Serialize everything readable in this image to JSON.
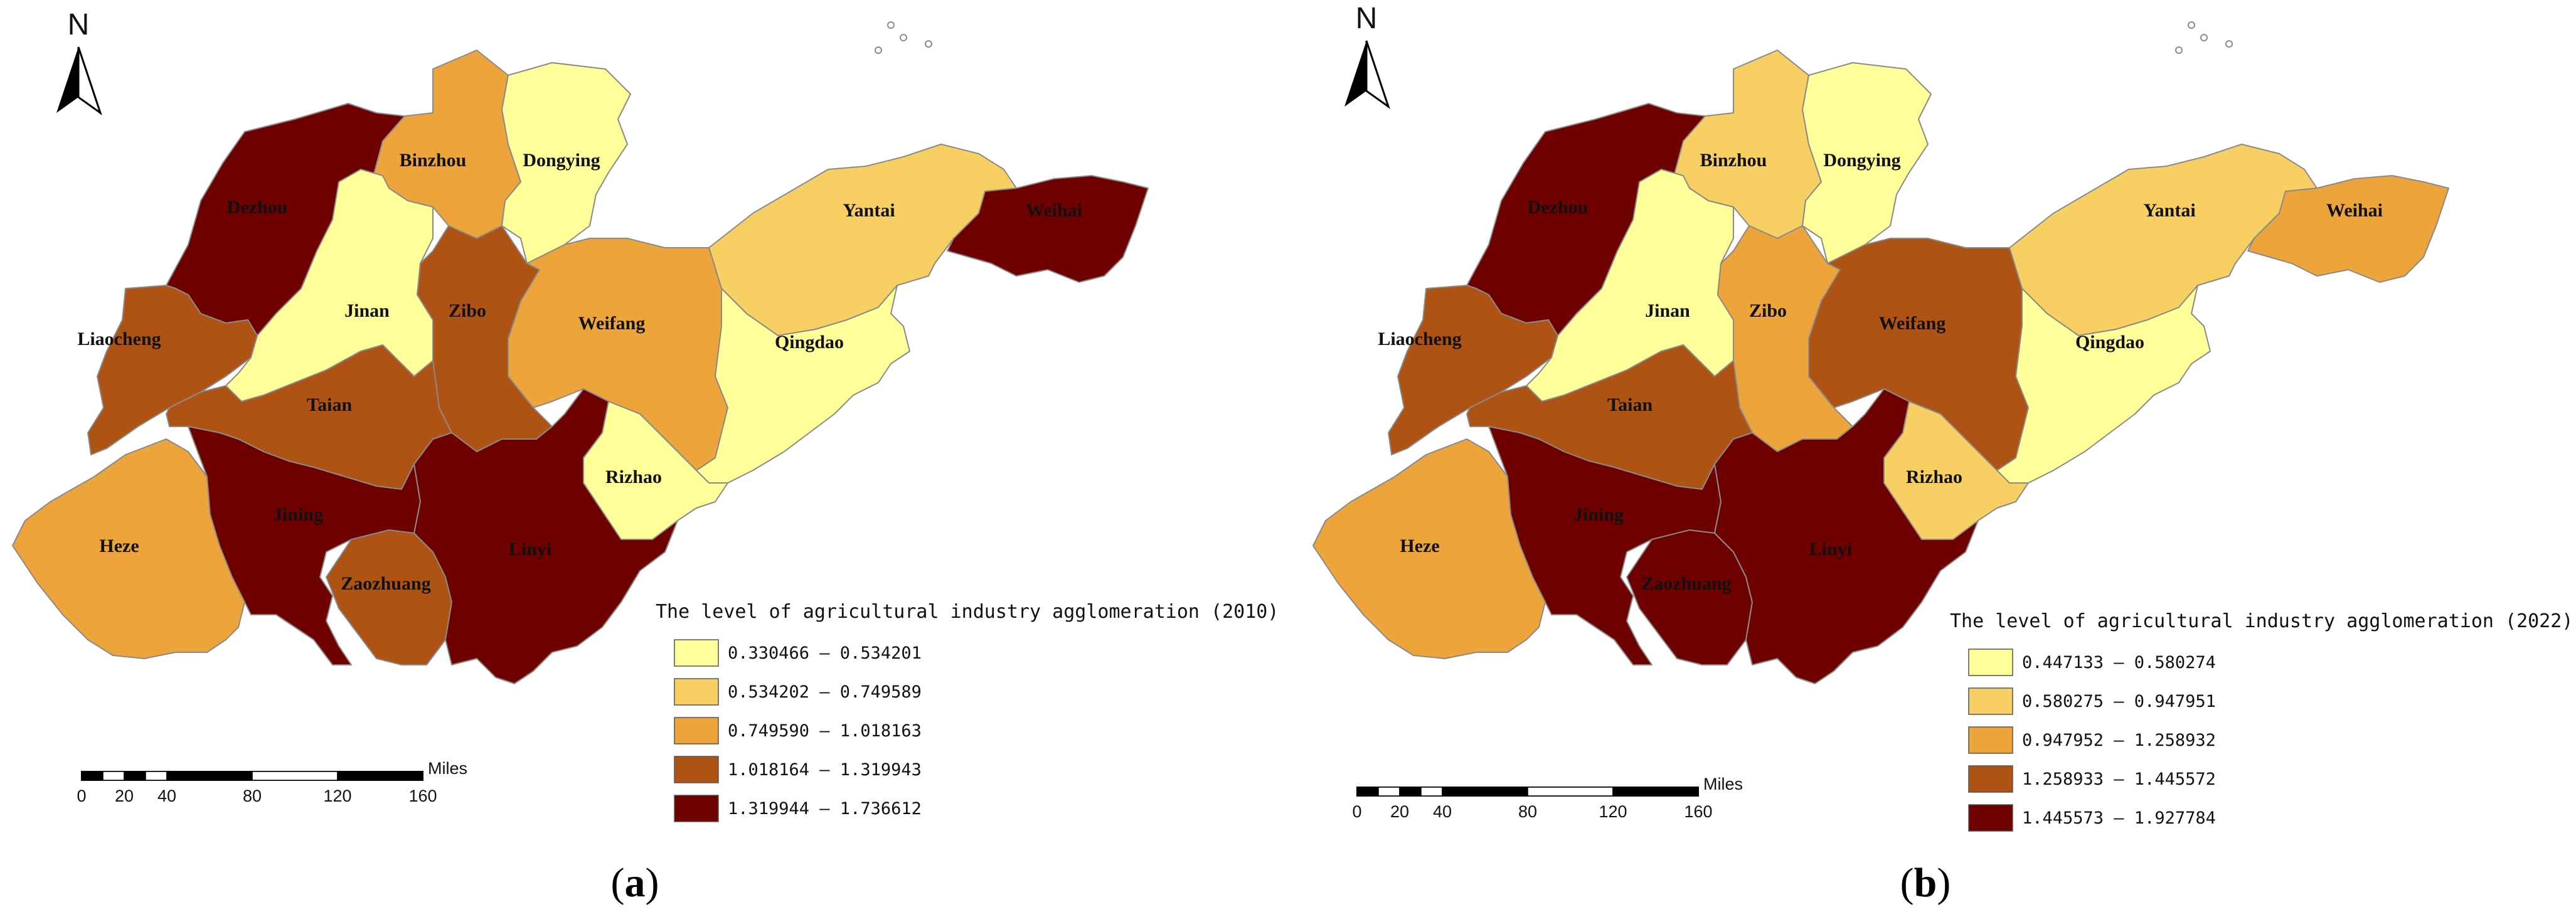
{
  "colors": {
    "class1": "#ffff99",
    "class2": "#f8cf62",
    "class3": "#eda43b",
    "class4": "#ae5314",
    "class5": "#6f0000"
  },
  "north_label": "N",
  "scale_bar": {
    "ticks": [
      "0",
      "20",
      "40",
      "80",
      "120",
      "160"
    ],
    "unit": "Miles"
  },
  "panels": [
    {
      "caption_letter": "a",
      "legend_title": "The level of agricultural industry agglomeration (2010)",
      "legend": [
        "0.330466 – 0.534201",
        "0.534202 – 0.749589",
        "0.749590 – 1.018163",
        "1.018164 – 1.319943",
        "1.319944 – 1.736612"
      ],
      "regions": [
        {
          "name": "Dezhou",
          "class": 5
        },
        {
          "name": "Binzhou",
          "class": 3
        },
        {
          "name": "Dongying",
          "class": 1
        },
        {
          "name": "Yantai",
          "class": 2
        },
        {
          "name": "Weihai",
          "class": 5
        },
        {
          "name": "Liaocheng",
          "class": 4
        },
        {
          "name": "Jinan",
          "class": 1
        },
        {
          "name": "Zibo",
          "class": 4
        },
        {
          "name": "Weifang",
          "class": 3
        },
        {
          "name": "Qingdao",
          "class": 1
        },
        {
          "name": "Taian",
          "class": 4
        },
        {
          "name": "Heze",
          "class": 3
        },
        {
          "name": "Jining",
          "class": 5
        },
        {
          "name": "Zaozhuang",
          "class": 4
        },
        {
          "name": "Linyi",
          "class": 5
        },
        {
          "name": "Rizhao",
          "class": 1
        }
      ]
    },
    {
      "caption_letter": "b",
      "legend_title": "The level of agricultural industry agglomeration (2022)",
      "legend": [
        "0.447133 – 0.580274",
        "0.580275 – 0.947951",
        "0.947952 – 1.258932",
        "1.258933 – 1.445572",
        "1.445573 – 1.927784"
      ],
      "regions": [
        {
          "name": "Dezhou",
          "class": 5
        },
        {
          "name": "Binzhou",
          "class": 2
        },
        {
          "name": "Dongying",
          "class": 1
        },
        {
          "name": "Yantai",
          "class": 2
        },
        {
          "name": "Weihai",
          "class": 3
        },
        {
          "name": "Liaocheng",
          "class": 4
        },
        {
          "name": "Jinan",
          "class": 1
        },
        {
          "name": "Zibo",
          "class": 3
        },
        {
          "name": "Weifang",
          "class": 4
        },
        {
          "name": "Qingdao",
          "class": 1
        },
        {
          "name": "Taian",
          "class": 4
        },
        {
          "name": "Heze",
          "class": 3
        },
        {
          "name": "Jining",
          "class": 5
        },
        {
          "name": "Zaozhuang",
          "class": 5
        },
        {
          "name": "Linyi",
          "class": 5
        },
        {
          "name": "Rizhao",
          "class": 2
        }
      ]
    }
  ]
}
